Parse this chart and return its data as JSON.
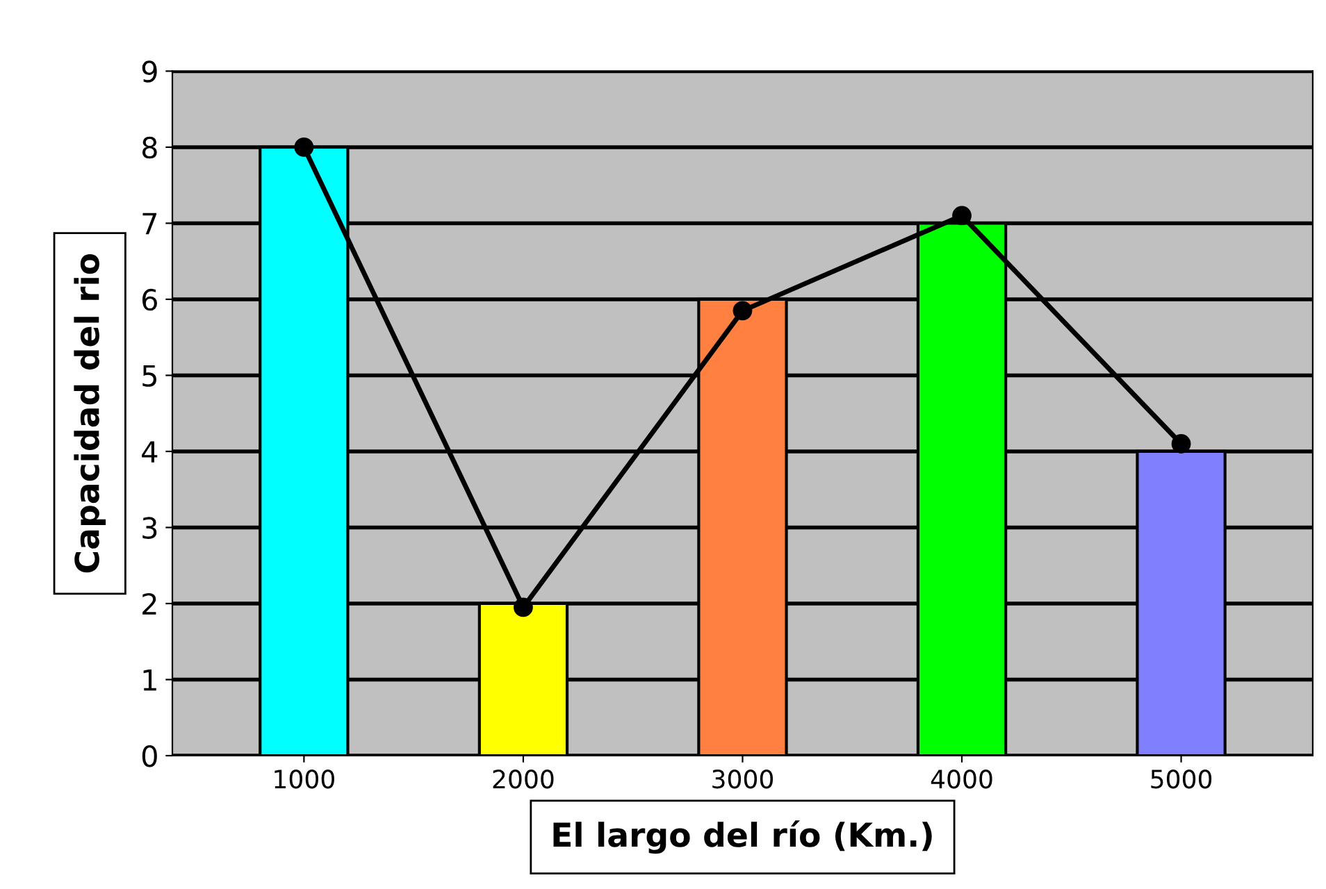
{
  "chart_data": {
    "type": "bar",
    "xlabel": "El largo del río (Km.)",
    "ylabel": "Capacidad del rio",
    "categories": [
      "1000",
      "2000",
      "3000",
      "4000",
      "5000"
    ],
    "series": [
      {
        "values": [
          8,
          2,
          6,
          7,
          4
        ],
        "colors": [
          "#00ffff",
          "#ffff00",
          "#ff8040",
          "#00ff00",
          "#8080ff"
        ]
      },
      {
        "type": "line",
        "color": "#000000",
        "values": [
          8.0,
          1.95,
          5.85,
          7.1,
          4.1
        ],
        "marker": "circle",
        "line_style": "solid"
      }
    ],
    "ylim": [
      0,
      9
    ],
    "yticks": [
      0,
      1,
      2,
      3,
      4,
      5,
      6,
      7,
      8,
      9
    ],
    "grid": "y",
    "legend": false
  }
}
